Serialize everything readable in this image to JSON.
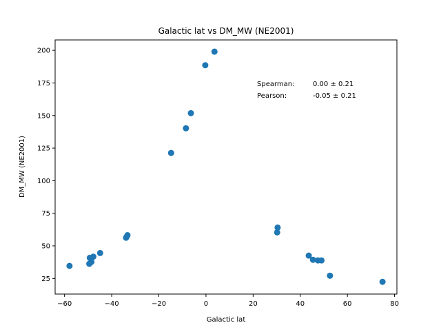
{
  "chart_data": {
    "type": "scatter",
    "title": "Galactic lat vs DM_MW (NE2001)",
    "xlabel": "Galactic lat",
    "ylabel": "DM_MW (NE2001)",
    "xlim": [
      -64,
      81
    ],
    "ylim": [
      13,
      208
    ],
    "xticks": [
      -60,
      -40,
      -20,
      0,
      20,
      40,
      60,
      80
    ],
    "yticks": [
      25,
      50,
      75,
      100,
      125,
      150,
      175,
      200
    ],
    "grid": false,
    "marker_color": "#1f77b4",
    "annotations": [
      {
        "label": "Spearman:",
        "value": "0.00 ± 0.21"
      },
      {
        "label": "Pearson:",
        "value": "-0.05 ± 0.21"
      }
    ],
    "points": [
      {
        "x": -57.9,
        "y": 34.6
      },
      {
        "x": -49.5,
        "y": 36.2
      },
      {
        "x": -48.6,
        "y": 37.7
      },
      {
        "x": -49.3,
        "y": 40.8
      },
      {
        "x": -47.8,
        "y": 41.7
      },
      {
        "x": -44.9,
        "y": 44.5
      },
      {
        "x": -33.9,
        "y": 56.2
      },
      {
        "x": -33.6,
        "y": 57.1
      },
      {
        "x": -33.3,
        "y": 58.2
      },
      {
        "x": -14.8,
        "y": 121.3
      },
      {
        "x": -8.5,
        "y": 140.2
      },
      {
        "x": -6.4,
        "y": 151.8
      },
      {
        "x": -0.3,
        "y": 188.6
      },
      {
        "x": 3.6,
        "y": 199.0
      },
      {
        "x": 30.2,
        "y": 60.3
      },
      {
        "x": 30.4,
        "y": 64.0
      },
      {
        "x": 43.6,
        "y": 42.5
      },
      {
        "x": 45.4,
        "y": 39.3
      },
      {
        "x": 47.5,
        "y": 38.8
      },
      {
        "x": 49.0,
        "y": 38.8
      },
      {
        "x": 52.6,
        "y": 27.1
      },
      {
        "x": 74.9,
        "y": 22.4
      }
    ]
  }
}
